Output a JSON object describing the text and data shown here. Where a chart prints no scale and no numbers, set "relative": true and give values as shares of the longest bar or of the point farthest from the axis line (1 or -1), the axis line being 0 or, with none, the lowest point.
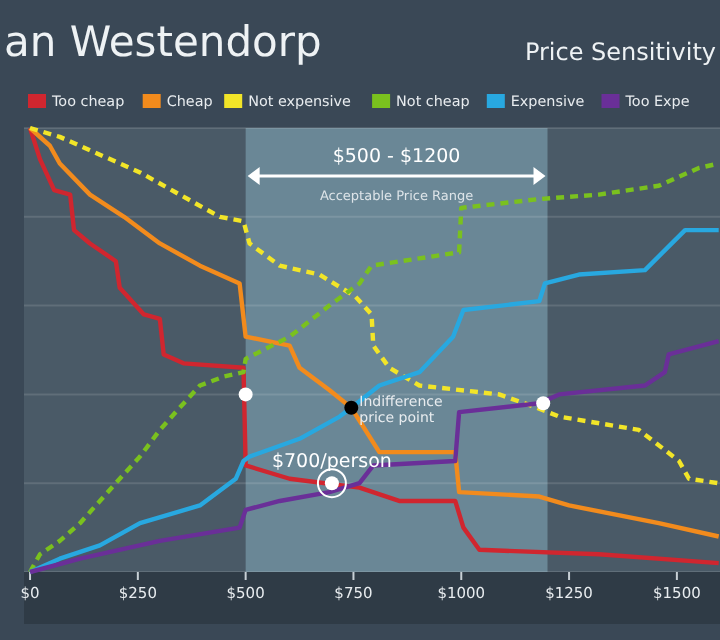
{
  "chart_data": {
    "type": "line",
    "title": "an Westendorp",
    "subtitle": "Price Sensitivity",
    "relative": true,
    "xlim": [
      -14,
      1600
    ],
    "xticks": [
      {
        "value": 0,
        "label": "$0"
      },
      {
        "value": 250,
        "label": "$250"
      },
      {
        "value": 500,
        "label": "$500"
      },
      {
        "value": 750,
        "label": "$750"
      },
      {
        "value": 1000,
        "label": "$1000"
      },
      {
        "value": 1250,
        "label": "$1250"
      },
      {
        "value": 1500,
        "label": "$1500"
      }
    ],
    "grid": "y",
    "legend": "top",
    "marker": "none",
    "bands": [
      {
        "axis": "x",
        "from": 500,
        "to": 1200,
        "label": "$500 - $1200",
        "color": "#6a8796"
      }
    ],
    "annotations": [
      "Acceptable Price Range",
      {
        "text": "$700/person",
        "x": 700,
        "y": 0.2
      },
      {
        "text": "Indifference price point",
        "x": 745,
        "y": 0.37
      }
    ],
    "series": [
      {
        "name": "Too cheap",
        "color": "#d0262f",
        "line_style": "solid",
        "x": [
          0,
          23,
          56,
          93,
          102,
          139,
          199,
          208,
          264,
          301,
          310,
          356,
          495,
          500,
          602,
          764,
          856,
          986,
          1005,
          1042,
          1319,
          1597
        ],
        "values": [
          1,
          0.93,
          0.86,
          0.85,
          0.77,
          0.74,
          0.7,
          0.64,
          0.58,
          0.57,
          0.49,
          0.47,
          0.46,
          0.24,
          0.21,
          0.19,
          0.16,
          0.16,
          0.1,
          0.05,
          0.04,
          0.02
        ]
      },
      {
        "name": "Cheap",
        "color": "#f28b1d",
        "line_style": "solid",
        "x": [
          0,
          46,
          69,
          139,
          218,
          301,
          394,
          486,
          500,
          602,
          625,
          694,
          745,
          810,
          986,
          995,
          1181,
          1250,
          1458,
          1597
        ],
        "values": [
          1,
          0.96,
          0.92,
          0.85,
          0.8,
          0.74,
          0.69,
          0.65,
          0.53,
          0.51,
          0.46,
          0.41,
          0.37,
          0.27,
          0.27,
          0.18,
          0.17,
          0.15,
          0.11,
          0.08
        ]
      },
      {
        "name": "Not expensive",
        "color": "#f2e528",
        "line_style": "dashed",
        "x": [
          0,
          69,
          162,
          255,
          347,
          440,
          495,
          509,
          579,
          671,
          755,
          792,
          796,
          833,
          903,
          1088,
          1176,
          1227,
          1412,
          1505,
          1528,
          1597
        ],
        "values": [
          1,
          0.98,
          0.94,
          0.9,
          0.85,
          0.8,
          0.79,
          0.74,
          0.69,
          0.67,
          0.62,
          0.58,
          0.51,
          0.46,
          0.42,
          0.4,
          0.37,
          0.35,
          0.32,
          0.25,
          0.21,
          0.2
        ]
      },
      {
        "name": "Not cheap",
        "color": "#7ac11e",
        "line_style": "dashed",
        "x": [
          0,
          23,
          69,
          116,
          162,
          208,
          255,
          301,
          347,
          394,
          449,
          495,
          500,
          602,
          694,
          764,
          792,
          995,
          1000,
          1181,
          1319,
          1458,
          1551,
          1597
        ],
        "values": [
          0,
          0.04,
          0.07,
          0.11,
          0.16,
          0.21,
          0.26,
          0.32,
          0.37,
          0.42,
          0.44,
          0.45,
          0.48,
          0.53,
          0.6,
          0.65,
          0.69,
          0.72,
          0.82,
          0.84,
          0.85,
          0.87,
          0.91,
          0.92
        ]
      },
      {
        "name": "Expensive",
        "color": "#28a8e0",
        "line_style": "solid",
        "x": [
          0,
          69,
          162,
          255,
          394,
          477,
          495,
          509,
          625,
          718,
          745,
          810,
          903,
          981,
          1005,
          1181,
          1194,
          1273,
          1426,
          1519,
          1597
        ],
        "values": [
          0,
          0.03,
          0.06,
          0.11,
          0.15,
          0.21,
          0.25,
          0.26,
          0.3,
          0.35,
          0.37,
          0.42,
          0.45,
          0.53,
          0.59,
          0.61,
          0.65,
          0.67,
          0.68,
          0.77,
          0.77
        ]
      },
      {
        "name": "Too Expe",
        "color": "#6a2f98",
        "line_style": "solid",
        "x": [
          0,
          116,
          301,
          486,
          500,
          579,
          694,
          764,
          796,
          986,
          995,
          1181,
          1227,
          1426,
          1472,
          1481,
          1597
        ],
        "values": [
          0,
          0.03,
          0.07,
          0.1,
          0.14,
          0.16,
          0.18,
          0.2,
          0.24,
          0.25,
          0.36,
          0.38,
          0.4,
          0.42,
          0.45,
          0.49,
          0.52
        ]
      },
      {
        "type": "scatter",
        "marker": "circle",
        "x": [
          500,
          745,
          1190,
          700
        ],
        "values": [
          0.4,
          0.37,
          0.38,
          0.2
        ],
        "colors": [
          "#ffffff",
          "#000000",
          "#ffffff",
          "#ffffff"
        ]
      }
    ]
  }
}
